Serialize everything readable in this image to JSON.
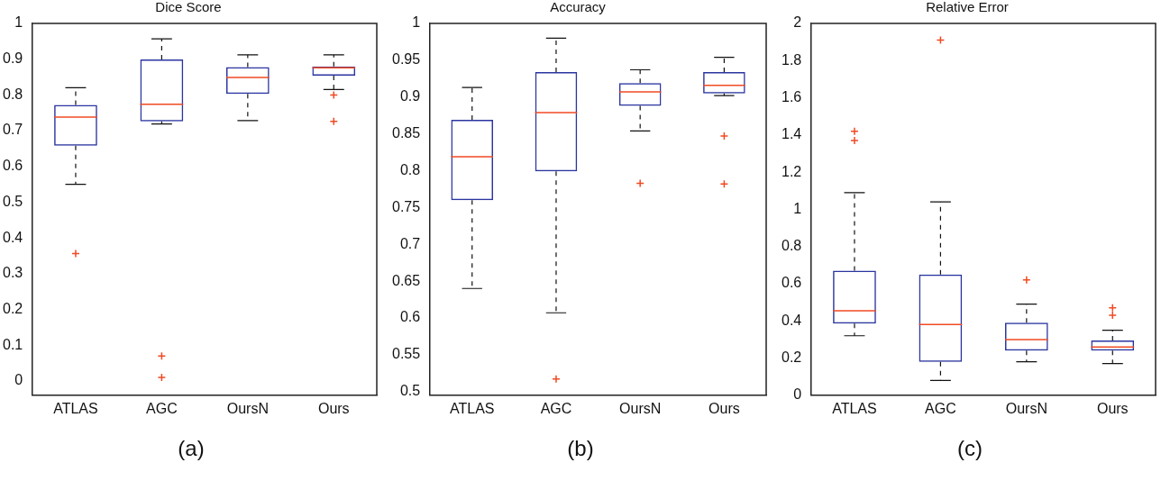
{
  "chart_data": [
    {
      "type": "box",
      "title": "Dice Score",
      "categories": [
        "ATLAS",
        "AGC",
        "OursN",
        "Ours"
      ],
      "ylim": [
        -0.04,
        1
      ],
      "yticks": [
        0,
        0.1,
        0.2,
        0.3,
        0.4,
        0.5,
        0.6,
        0.7,
        0.8,
        0.9,
        1
      ],
      "grid": false,
      "annotations": [
        "(a)"
      ],
      "series": [
        {
          "color": "#2a35a0",
          "boxes": [
            {
              "low": 0.55,
              "q1": 0.658,
              "median": 0.738,
              "q3": 0.772,
              "high": 0.82,
              "outliers": [
                0.356
              ]
            },
            {
              "low": 0.719,
              "q1": 0.726,
              "median": 0.774,
              "q3": 0.899,
              "high": 0.957,
              "outliers": [
                0.07,
                0.01
              ]
            },
            {
              "low": 0.728,
              "q1": 0.803,
              "median": 0.849,
              "q3": 0.878,
              "high": 0.912
            },
            {
              "low": 0.815,
              "q1": 0.854,
              "median": 0.876,
              "q3": 0.88,
              "high": 0.912,
              "outliers": [
                0.8,
                0.726
              ]
            }
          ]
        }
      ]
    },
    {
      "type": "box",
      "title": "Accuracy",
      "categories": [
        "ATLAS",
        "AGC",
        "OursN",
        "Ours"
      ],
      "ylim": [
        0.495,
        1
      ],
      "yticks": [
        0.5,
        0.55,
        0.6,
        0.65,
        0.7,
        0.75,
        0.8,
        0.85,
        0.9,
        0.95,
        1
      ],
      "grid": false,
      "annotations": [
        "(b)"
      ],
      "series": [
        {
          "color": "#2a35a0",
          "boxes": [
            {
              "low": 0.64,
              "q1": 0.76,
              "median": 0.819,
              "q3": 0.869,
              "high": 0.913
            },
            {
              "low": 0.607,
              "q1": 0.799,
              "median": 0.879,
              "q3": 0.934,
              "high": 0.98,
              "outliers": [
                0.517
              ]
            },
            {
              "low": 0.854,
              "q1": 0.888,
              "median": 0.907,
              "q3": 0.919,
              "high": 0.937,
              "outliers": [
                0.783
              ]
            },
            {
              "low": 0.902,
              "q1": 0.905,
              "median": 0.916,
              "q3": 0.934,
              "high": 0.954,
              "outliers": [
                0.847,
                0.782
              ]
            }
          ]
        }
      ]
    },
    {
      "type": "box",
      "title": "Relative Error",
      "categories": [
        "ATLAS",
        "AGC",
        "OursN",
        "Ours"
      ],
      "ylim": [
        0,
        2
      ],
      "yticks": [
        0,
        0.2,
        0.4,
        0.6,
        0.8,
        1,
        1.2,
        1.4,
        1.6,
        1.8,
        2
      ],
      "grid": false,
      "annotations": [
        "(c)"
      ],
      "series": [
        {
          "color": "#2a35a0",
          "boxes": [
            {
              "low": 0.32,
              "q1": 0.385,
              "median": 0.455,
              "q3": 0.67,
              "high": 1.09,
              "outliers": [
                1.42,
                1.37
              ]
            },
            {
              "low": 0.08,
              "q1": 0.18,
              "median": 0.38,
              "q3": 0.65,
              "high": 1.04,
              "outliers": [
                1.91
              ]
            },
            {
              "low": 0.18,
              "q1": 0.24,
              "median": 0.3,
              "q3": 0.39,
              "high": 0.49,
              "outliers": [
                0.62
              ]
            },
            {
              "low": 0.17,
              "q1": 0.24,
              "median": 0.26,
              "q3": 0.295,
              "high": 0.35,
              "outliers": [
                0.47,
                0.43
              ]
            }
          ]
        }
      ]
    }
  ]
}
